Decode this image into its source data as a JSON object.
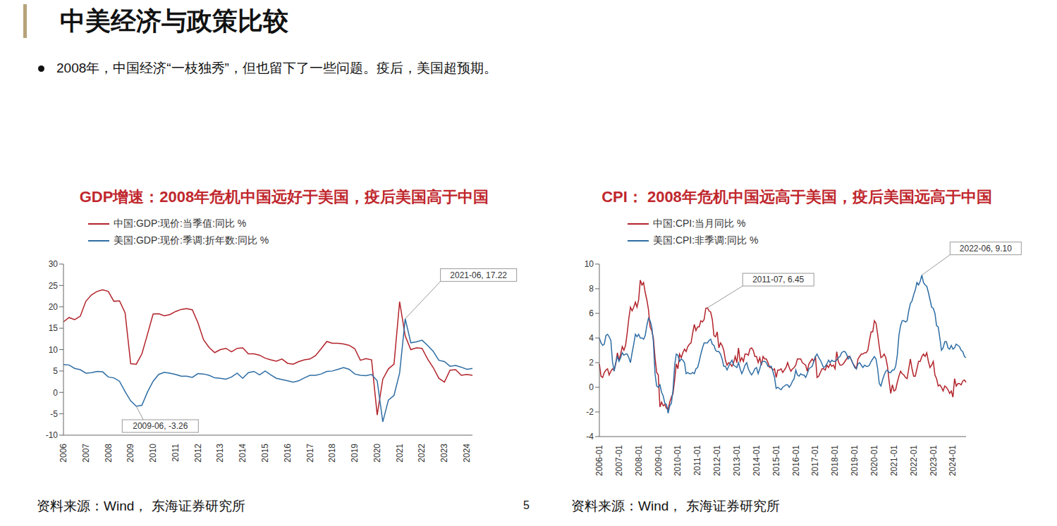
{
  "header": {
    "title": "中美经济与政策比较",
    "bullet": "2008年，中国经济“一枝独秀”，但也留下了一些问题。疫后，美国超预期。"
  },
  "page_number": 5,
  "chart_data": [
    {
      "type": "line",
      "title": "GDP增速：2008年危机中国远好于美国，疫后美国高于中国",
      "source": "资料来源：Wind， 东海证券研究所",
      "legend": "top-left",
      "grid": false,
      "ylim": [
        -10,
        30
      ],
      "yticks": [
        -10,
        -5,
        0,
        5,
        10,
        15,
        20,
        25,
        30
      ],
      "categories": [
        "2006",
        null,
        null,
        null,
        "2007",
        null,
        null,
        null,
        "2008",
        null,
        null,
        null,
        "2009",
        null,
        null,
        null,
        "2010",
        null,
        null,
        null,
        "2011",
        null,
        null,
        null,
        "2012",
        null,
        null,
        null,
        "2013",
        null,
        null,
        null,
        "2014",
        null,
        null,
        null,
        "2015",
        null,
        null,
        null,
        "2016",
        null,
        null,
        null,
        "2017",
        null,
        null,
        null,
        "2018",
        null,
        null,
        null,
        "2019",
        null,
        null,
        null,
        "2020",
        null,
        null,
        null,
        "2021",
        null,
        null,
        null,
        "2022",
        null,
        null,
        null,
        "2023",
        null,
        null,
        null,
        "2024",
        null
      ],
      "series": [
        {
          "name": "中国:GDP:现价:当季值:同比 %",
          "color": "#B2232B",
          "values": [
            16.5,
            17.5,
            17.0,
            17.8,
            21.3,
            22.8,
            23.6,
            24.0,
            23.6,
            21.3,
            21.4,
            18.6,
            6.7,
            6.6,
            9.0,
            13.6,
            18.3,
            18.4,
            17.9,
            18.2,
            18.9,
            19.4,
            19.6,
            19.3,
            16.3,
            12.3,
            10.5,
            9.3,
            10.0,
            10.3,
            9.5,
            10.3,
            10.4,
            9.0,
            9.0,
            8.7,
            8.0,
            7.6,
            7.3,
            7.8,
            6.8,
            6.6,
            7.2,
            7.6,
            7.8,
            8.6,
            10.2,
            11.9,
            11.5,
            11.5,
            11.3,
            11.0,
            10.2,
            7.5,
            7.9,
            7.6,
            -5.3,
            3.1,
            5.5,
            6.6,
            21.2,
            13.2,
            10.0,
            10.4,
            10.3,
            7.8,
            5.8,
            3.3,
            2.4,
            5.2,
            5.3,
            4.0,
            4.2,
            4.0
          ]
        },
        {
          "name": "美国:GDP:现价:季调:折年数:同比 %",
          "color": "#2E6DA4",
          "values": [
            6.5,
            6.4,
            5.6,
            5.3,
            4.5,
            4.6,
            4.9,
            4.8,
            3.6,
            3.4,
            2.6,
            0.2,
            -2.0,
            -3.26,
            -3.0,
            0.1,
            2.6,
            4.2,
            4.7,
            4.5,
            4.2,
            3.8,
            3.8,
            3.5,
            4.4,
            4.3,
            4.0,
            3.4,
            3.3,
            3.1,
            3.6,
            4.5,
            3.3,
            4.6,
            4.9,
            4.1,
            5.0,
            4.1,
            3.3,
            3.0,
            2.7,
            2.4,
            2.7,
            3.4,
            4.0,
            4.0,
            4.3,
            4.9,
            5.0,
            5.4,
            5.8,
            5.4,
            4.3,
            4.0,
            3.9,
            4.2,
            2.7,
            -6.9,
            -1.8,
            -0.7,
            4.5,
            17.22,
            11.6,
            11.8,
            12.2,
            11.0,
            9.6,
            7.5,
            7.2,
            6.1,
            6.3,
            5.9,
            5.4,
            5.6
          ]
        }
      ],
      "annotations": [
        {
          "text": "2009-06, -3.26",
          "x": "2009-06",
          "y": -3.26
        },
        {
          "text": "2021-06, 17.22",
          "x": "2021-06",
          "y": 17.22
        }
      ]
    },
    {
      "type": "line",
      "title": "CPI： 2008年危机中国远高于美国，疫后美国远高于中国",
      "source": "资料来源：Wind， 东海证券研究所",
      "legend": "top-left",
      "grid": false,
      "ylim": [
        -4,
        10
      ],
      "yticks": [
        -4,
        -2,
        0,
        2,
        4,
        6,
        8,
        10
      ],
      "categories": [
        "2006-01",
        null,
        null,
        null,
        null,
        null,
        null,
        null,
        null,
        null,
        null,
        null,
        "2007-01",
        null,
        null,
        null,
        null,
        null,
        null,
        null,
        null,
        null,
        null,
        null,
        "2008-01",
        null,
        null,
        null,
        null,
        null,
        null,
        null,
        null,
        null,
        null,
        null,
        "2009-01",
        null,
        null,
        null,
        null,
        null,
        null,
        null,
        null,
        null,
        null,
        null,
        "2010-01",
        null,
        null,
        null,
        null,
        null,
        null,
        null,
        null,
        null,
        null,
        null,
        "2011-01",
        null,
        null,
        null,
        null,
        null,
        null,
        null,
        null,
        null,
        null,
        null,
        "2012-01",
        null,
        null,
        null,
        null,
        null,
        null,
        null,
        null,
        null,
        null,
        null,
        "2013-01",
        null,
        null,
        null,
        null,
        null,
        null,
        null,
        null,
        null,
        null,
        null,
        "2014-01",
        null,
        null,
        null,
        null,
        null,
        null,
        null,
        null,
        null,
        null,
        null,
        "2015-01",
        null,
        null,
        null,
        null,
        null,
        null,
        null,
        null,
        null,
        null,
        null,
        "2016-01",
        null,
        null,
        null,
        null,
        null,
        null,
        null,
        null,
        null,
        null,
        null,
        "2017-01",
        null,
        null,
        null,
        null,
        null,
        null,
        null,
        null,
        null,
        null,
        null,
        "2018-01",
        null,
        null,
        null,
        null,
        null,
        null,
        null,
        null,
        null,
        null,
        null,
        "2019-01",
        null,
        null,
        null,
        null,
        null,
        null,
        null,
        null,
        null,
        null,
        null,
        "2020-01",
        null,
        null,
        null,
        null,
        null,
        null,
        null,
        null,
        null,
        null,
        null,
        "2021-01",
        null,
        null,
        null,
        null,
        null,
        null,
        null,
        null,
        null,
        null,
        null,
        "2022-01",
        null,
        null,
        null,
        null,
        null,
        null,
        null,
        null,
        null,
        null,
        null,
        "2023-01",
        null,
        null,
        null,
        null,
        null,
        null,
        null,
        null,
        null,
        null,
        null,
        "2024-01",
        null,
        null,
        null,
        null,
        null,
        null,
        null,
        null
      ],
      "series": [
        {
          "name": "中国:CPI:当月同比 %",
          "color": "#B2232B",
          "values": [
            1.9,
            0.9,
            0.8,
            1.2,
            1.4,
            1.5,
            1.0,
            1.3,
            1.5,
            1.4,
            1.9,
            2.8,
            2.2,
            2.7,
            3.3,
            3.0,
            3.4,
            4.4,
            5.6,
            6.5,
            6.2,
            6.5,
            6.9,
            6.5,
            7.1,
            8.7,
            8.3,
            8.5,
            7.7,
            7.1,
            6.3,
            4.9,
            4.6,
            4.0,
            2.4,
            1.2,
            1.0,
            -1.6,
            -1.2,
            -1.5,
            -1.4,
            -1.7,
            -1.8,
            -1.2,
            -0.8,
            -0.5,
            0.6,
            1.9,
            1.5,
            2.7,
            2.4,
            2.8,
            3.1,
            2.9,
            3.3,
            3.5,
            3.6,
            4.4,
            5.1,
            4.6,
            4.9,
            4.9,
            5.4,
            5.3,
            5.5,
            6.4,
            6.45,
            6.2,
            6.1,
            5.5,
            4.2,
            4.1,
            4.5,
            3.2,
            3.6,
            3.4,
            3.0,
            2.2,
            1.8,
            2.0,
            1.9,
            1.7,
            2.0,
            2.5,
            2.0,
            3.2,
            2.1,
            2.4,
            2.1,
            2.7,
            2.7,
            2.6,
            3.1,
            3.2,
            3.0,
            2.5,
            2.5,
            2.0,
            2.4,
            1.8,
            2.5,
            2.3,
            2.3,
            2.0,
            1.6,
            1.6,
            1.4,
            1.5,
            0.8,
            1.4,
            1.4,
            1.5,
            1.2,
            1.4,
            1.6,
            2.0,
            1.6,
            1.3,
            1.5,
            1.6,
            1.8,
            2.3,
            2.3,
            2.3,
            2.0,
            1.9,
            1.8,
            1.3,
            1.9,
            2.1,
            2.3,
            2.1,
            2.5,
            0.8,
            0.9,
            1.2,
            1.5,
            1.5,
            1.4,
            1.8,
            1.6,
            1.9,
            1.7,
            1.8,
            1.5,
            2.9,
            2.1,
            1.8,
            1.8,
            1.9,
            2.1,
            2.3,
            2.5,
            2.5,
            2.2,
            1.9,
            1.7,
            1.5,
            2.3,
            2.5,
            2.7,
            2.7,
            2.8,
            2.8,
            3.0,
            3.8,
            4.5,
            4.5,
            5.4,
            5.2,
            4.3,
            3.3,
            2.4,
            2.5,
            2.7,
            2.4,
            1.7,
            0.5,
            -0.5,
            0.2,
            -0.3,
            -0.2,
            0.4,
            0.9,
            1.3,
            1.1,
            1.0,
            0.8,
            0.7,
            1.5,
            2.3,
            1.5,
            0.9,
            0.9,
            1.5,
            2.1,
            2.1,
            2.5,
            2.7,
            2.5,
            2.8,
            2.1,
            1.6,
            1.8,
            2.1,
            1.0,
            0.7,
            0.1,
            0.2,
            0.0,
            -0.3,
            0.1,
            0.0,
            -0.2,
            -0.5,
            -0.3,
            -0.8,
            0.7,
            0.1,
            0.3,
            0.3,
            0.2,
            0.5,
            0.6,
            0.4
          ]
        },
        {
          "name": "美国:CPI:非季调:同比 %",
          "color": "#2E6DA4",
          "values": [
            4.0,
            3.6,
            3.4,
            3.5,
            4.2,
            4.3,
            4.1,
            3.8,
            2.1,
            1.3,
            2.0,
            2.5,
            2.1,
            2.4,
            2.8,
            2.6,
            2.7,
            2.7,
            2.4,
            2.0,
            2.8,
            3.5,
            4.3,
            4.1,
            4.3,
            4.0,
            4.0,
            3.9,
            4.2,
            5.0,
            5.6,
            5.4,
            4.9,
            3.7,
            1.1,
            0.1,
            0.0,
            0.2,
            -0.4,
            -0.7,
            -1.3,
            -1.4,
            -2.1,
            -1.5,
            -1.3,
            -0.2,
            1.8,
            2.7,
            2.6,
            2.1,
            2.3,
            2.2,
            2.0,
            1.1,
            1.2,
            1.1,
            1.1,
            1.2,
            1.1,
            1.5,
            1.6,
            2.1,
            2.7,
            3.2,
            3.6,
            3.6,
            3.6,
            3.8,
            3.9,
            3.5,
            3.4,
            3.0,
            2.9,
            2.9,
            2.7,
            2.3,
            1.7,
            1.7,
            1.4,
            1.7,
            2.0,
            2.2,
            1.8,
            1.7,
            1.6,
            2.0,
            1.5,
            1.1,
            1.4,
            1.8,
            2.0,
            1.5,
            1.2,
            1.0,
            1.2,
            1.5,
            1.6,
            1.1,
            1.5,
            2.0,
            2.1,
            2.1,
            2.0,
            1.7,
            1.7,
            1.7,
            1.3,
            0.8,
            -0.1,
            0.0,
            -0.1,
            -0.2,
            0.0,
            0.1,
            0.2,
            0.2,
            0.0,
            0.2,
            0.5,
            0.7,
            1.4,
            1.0,
            0.9,
            1.1,
            1.0,
            1.0,
            0.8,
            1.1,
            1.5,
            1.6,
            1.7,
            2.1,
            2.5,
            2.7,
            2.4,
            2.2,
            1.9,
            1.6,
            1.7,
            1.9,
            2.2,
            2.0,
            2.2,
            2.1,
            2.1,
            2.2,
            2.4,
            2.5,
            2.8,
            2.9,
            2.9,
            2.7,
            2.3,
            2.5,
            2.2,
            1.9,
            1.6,
            1.5,
            1.9,
            2.0,
            1.8,
            1.6,
            1.8,
            1.7,
            1.7,
            1.8,
            2.1,
            2.3,
            2.5,
            2.3,
            1.5,
            0.3,
            0.1,
            0.6,
            1.0,
            1.3,
            1.4,
            1.2,
            1.2,
            1.4,
            1.4,
            1.7,
            2.6,
            4.2,
            5.0,
            5.4,
            5.4,
            5.3,
            5.4,
            6.2,
            6.8,
            7.0,
            7.5,
            7.9,
            8.5,
            8.3,
            8.6,
            9.1,
            8.5,
            8.3,
            8.2,
            7.7,
            7.1,
            6.5,
            6.4,
            6.0,
            5.0,
            4.9,
            4.0,
            3.0,
            3.2,
            3.7,
            3.7,
            3.2,
            3.1,
            3.4,
            3.1,
            3.2,
            3.5,
            3.4,
            3.3,
            3.0,
            2.9,
            2.5,
            2.4
          ]
        }
      ],
      "annotations": [
        {
          "text": "2011-07, 6.45",
          "x": "2011-07",
          "y": 6.45
        },
        {
          "text": "2022-06, 9.10",
          "x": "2022-06",
          "y": 9.1
        }
      ]
    }
  ]
}
